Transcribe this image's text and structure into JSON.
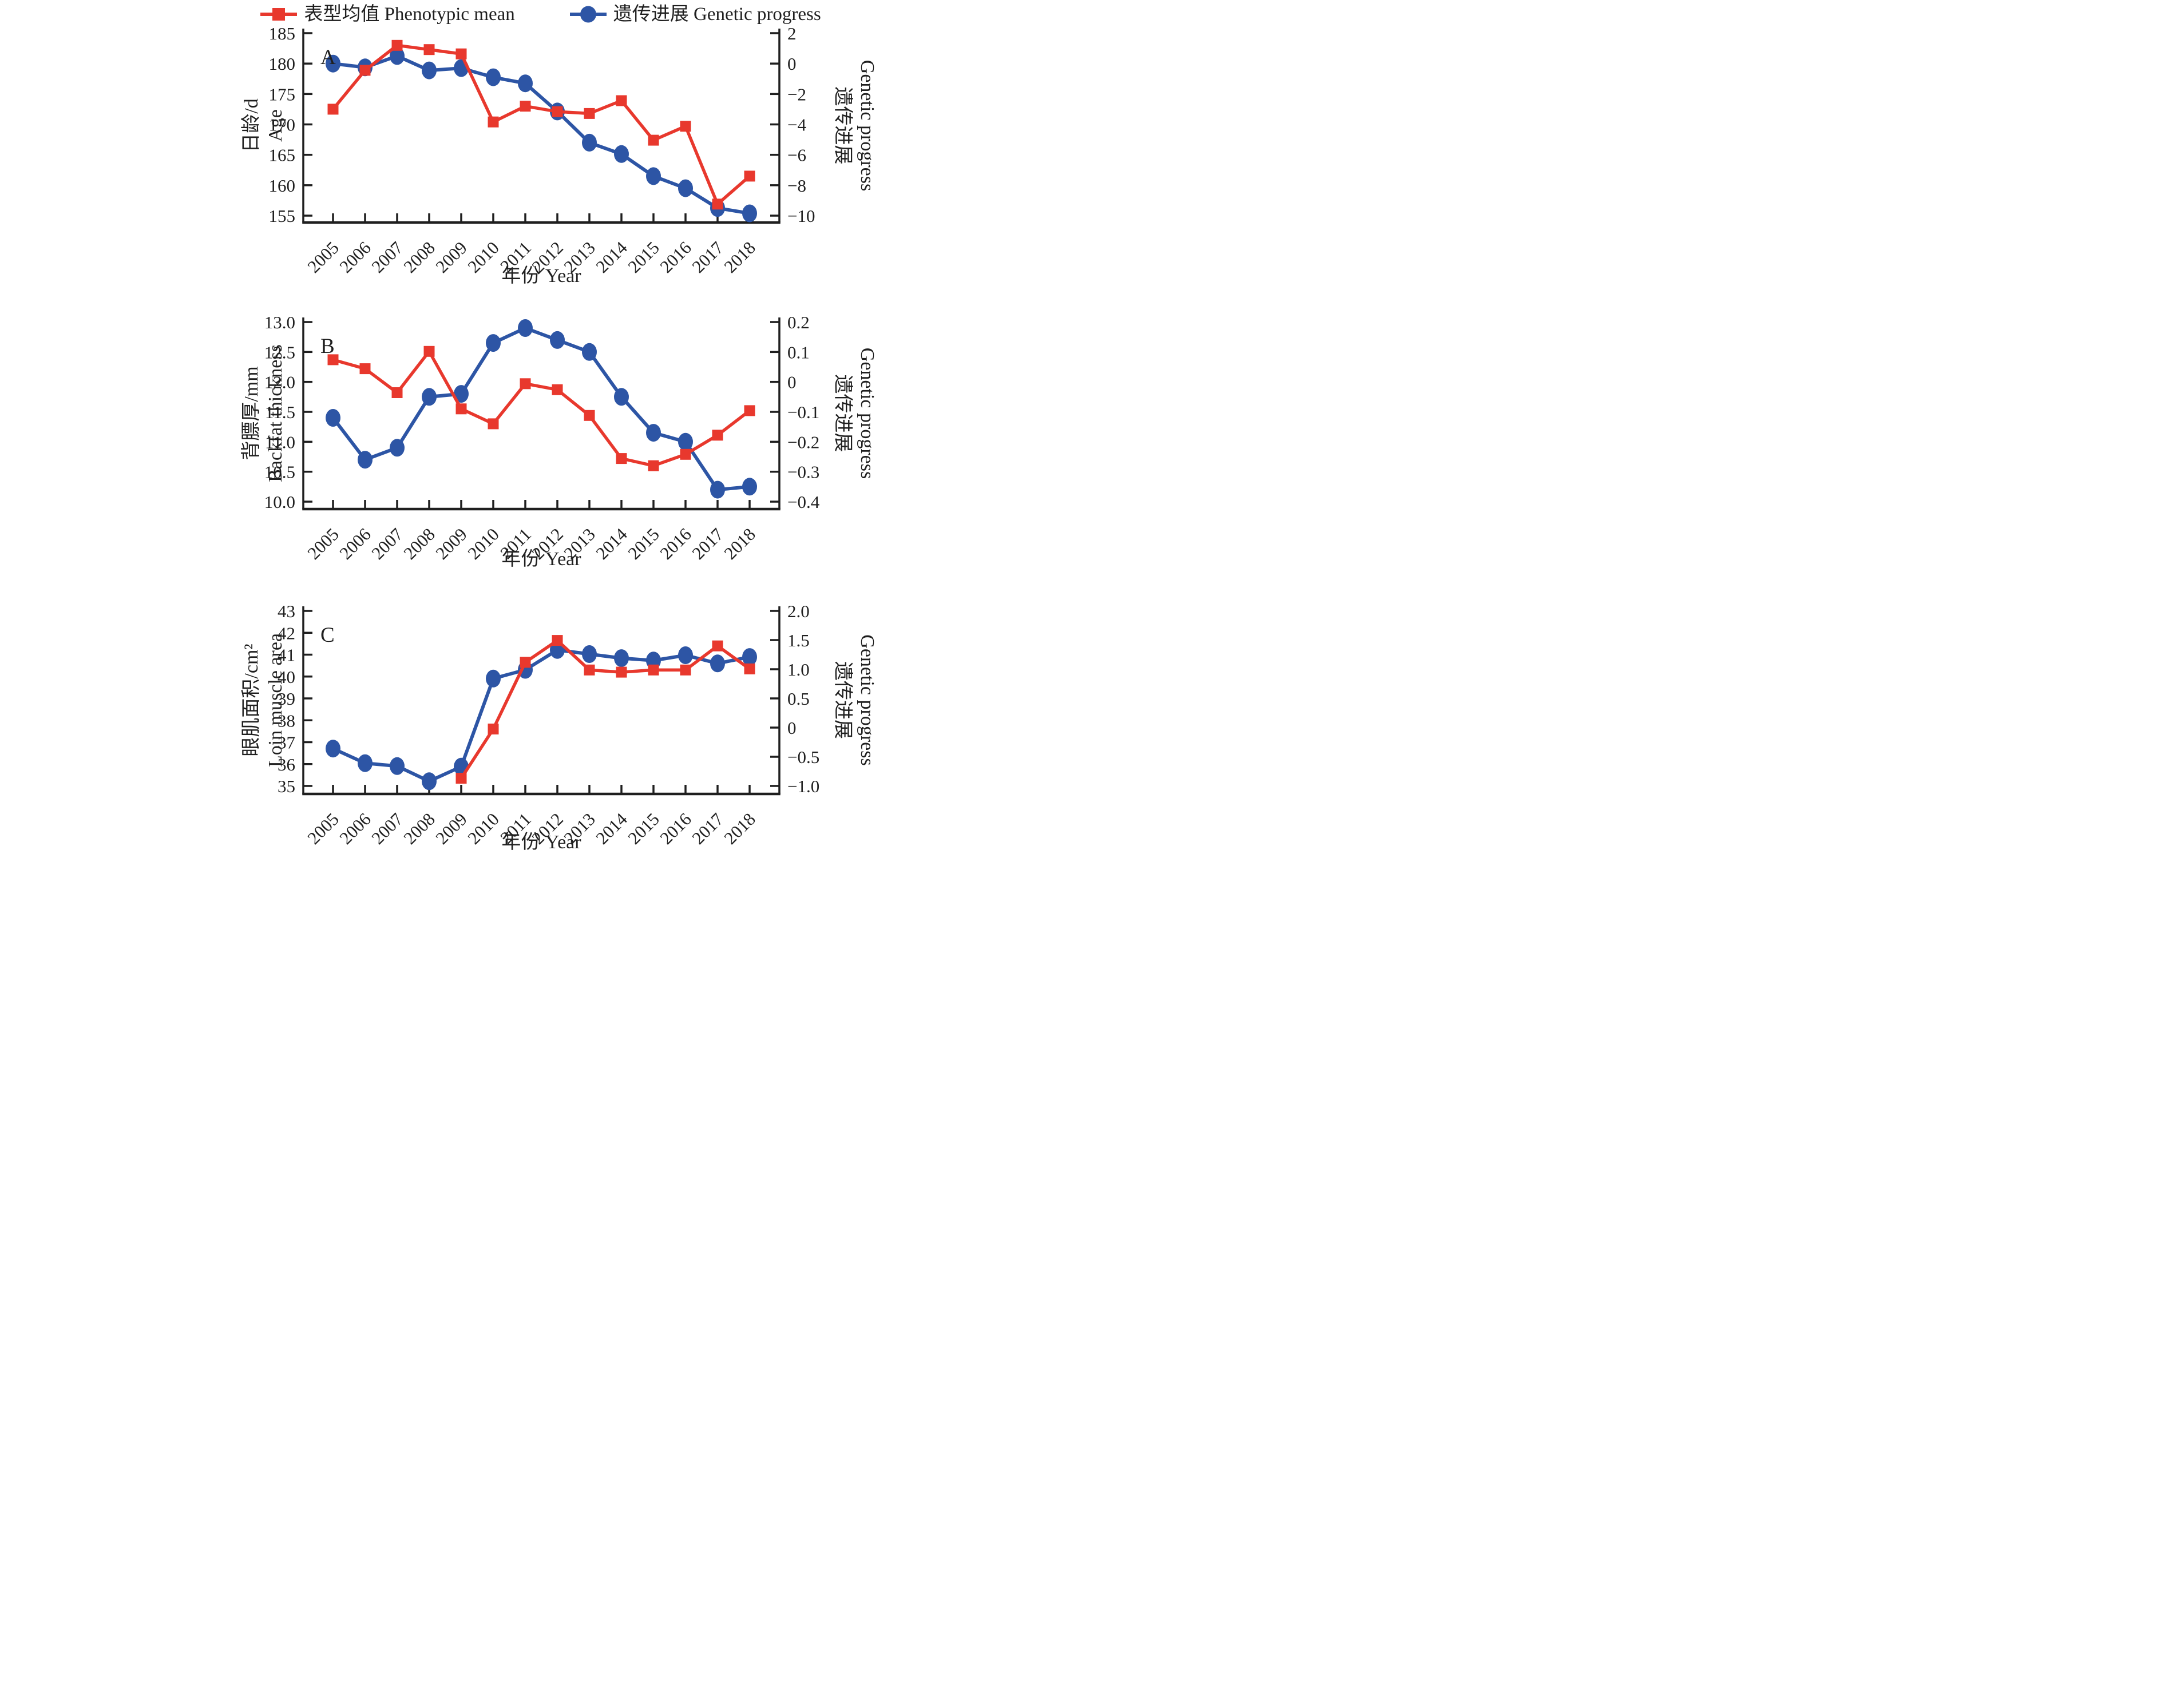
{
  "figure": {
    "background": "#ffffff",
    "text_color": "#1f1f1f"
  },
  "legend": {
    "items": [
      {
        "label": "表型均值 Phenotypic mean",
        "marker": "square",
        "color": "#e8382d"
      },
      {
        "label": "遗传进展 Genetic progress",
        "marker": "circle",
        "color": "#2d55a5"
      }
    ]
  },
  "x_axis": {
    "title": "年份 Year",
    "categories": [
      "2005",
      "2006",
      "2007",
      "2008",
      "2009",
      "2010",
      "2011",
      "2012",
      "2013",
      "2014",
      "2015",
      "2016",
      "2017",
      "2018"
    ]
  },
  "chart_data": [
    {
      "panel": "A",
      "type": "line",
      "letter": "A",
      "x_title": "年份 Year",
      "left_axis": {
        "title_zh": "日龄/d",
        "title_en": "Age",
        "min": 155,
        "max": 185,
        "ticks": [
          "185",
          "180",
          "175",
          "170",
          "165",
          "160",
          "155"
        ]
      },
      "right_axis": {
        "title_zh": "遗传进展",
        "title_en": "Genetic progress",
        "min": -10,
        "max": 2,
        "ticks": [
          "2",
          "0",
          "−2",
          "−4",
          "−6",
          "−8",
          "−10"
        ]
      },
      "series": [
        {
          "name": "表型均值 Phenotypic mean",
          "axis": "left",
          "marker": "square",
          "color": "#e8382d",
          "values": [
            172.5,
            178.9,
            183.0,
            182.3,
            181.6,
            170.4,
            173.0,
            172.1,
            171.8,
            173.9,
            167.4,
            169.7,
            156.9,
            161.5
          ]
        },
        {
          "name": "遗传进展 Genetic progress",
          "axis": "right",
          "marker": "circle",
          "color": "#2d55a5",
          "values": [
            0.0,
            -0.25,
            0.5,
            -0.45,
            -0.3,
            -0.9,
            -1.3,
            -3.15,
            -5.2,
            -5.95,
            -7.4,
            -8.2,
            -9.5,
            -9.85
          ]
        }
      ]
    },
    {
      "panel": "B",
      "type": "line",
      "letter": "B",
      "x_title": "年份 Year",
      "left_axis": {
        "title_zh": "背膘厚/mm",
        "title_en": "Backfat thickness",
        "min": 10,
        "max": 13,
        "ticks": [
          "13.0",
          "12.5",
          "12.0",
          "11.5",
          "11.0",
          "10.5",
          "10.0"
        ]
      },
      "right_axis": {
        "title_zh": "遗传进展",
        "title_en": "Genetic progress",
        "min": -0.4,
        "max": 0.2,
        "ticks": [
          "0.2",
          "0.1",
          "0",
          "−0.1",
          "−0.2",
          "−0.3",
          "−0.4"
        ]
      },
      "series": [
        {
          "name": "表型均值 Phenotypic mean",
          "axis": "left",
          "marker": "square",
          "color": "#e8382d",
          "values": [
            12.37,
            12.22,
            11.82,
            12.51,
            11.55,
            11.3,
            11.97,
            11.87,
            11.44,
            10.72,
            10.6,
            10.79,
            11.11,
            11.52
          ]
        },
        {
          "name": "遗传进展 Genetic progress",
          "axis": "right",
          "marker": "circle",
          "color": "#2d55a5",
          "values": [
            -0.12,
            -0.26,
            -0.22,
            -0.05,
            -0.04,
            0.13,
            0.18,
            0.14,
            0.1,
            -0.05,
            -0.17,
            -0.2,
            -0.36,
            -0.35
          ]
        }
      ]
    },
    {
      "panel": "C",
      "type": "line",
      "letter": "C",
      "x_title": "年份 Year",
      "left_axis": {
        "title_zh": "眼肌面积/cm²",
        "title_en": "Loin muscle area",
        "min": 35,
        "max": 43,
        "ticks": [
          "43",
          "42",
          "41",
          "40",
          "39",
          "38",
          "37",
          "36",
          "35"
        ]
      },
      "right_axis": {
        "title_zh": "遗传进展",
        "title_en": "Genetic progress",
        "min": -1.0,
        "max": 2.0,
        "ticks": [
          "2.0",
          "1.5",
          "1.0",
          "0.5",
          "0",
          "−0.5",
          "−1.0"
        ]
      },
      "series": [
        {
          "name": "表型均值 Phenotypic mean",
          "axis": "left",
          "marker": "square",
          "color": "#e8382d",
          "values": [
            null,
            null,
            null,
            null,
            35.35,
            37.6,
            40.65,
            41.65,
            40.3,
            40.2,
            40.3,
            40.3,
            41.4,
            40.35
          ]
        },
        {
          "name": "遗传进展 Genetic progress",
          "axis": "right",
          "marker": "circle",
          "color": "#2d55a5",
          "values": [
            -0.36,
            -0.61,
            -0.66,
            -0.92,
            -0.67,
            0.84,
            0.99,
            1.33,
            1.26,
            1.19,
            1.15,
            1.24,
            1.1,
            1.21
          ]
        }
      ]
    }
  ]
}
